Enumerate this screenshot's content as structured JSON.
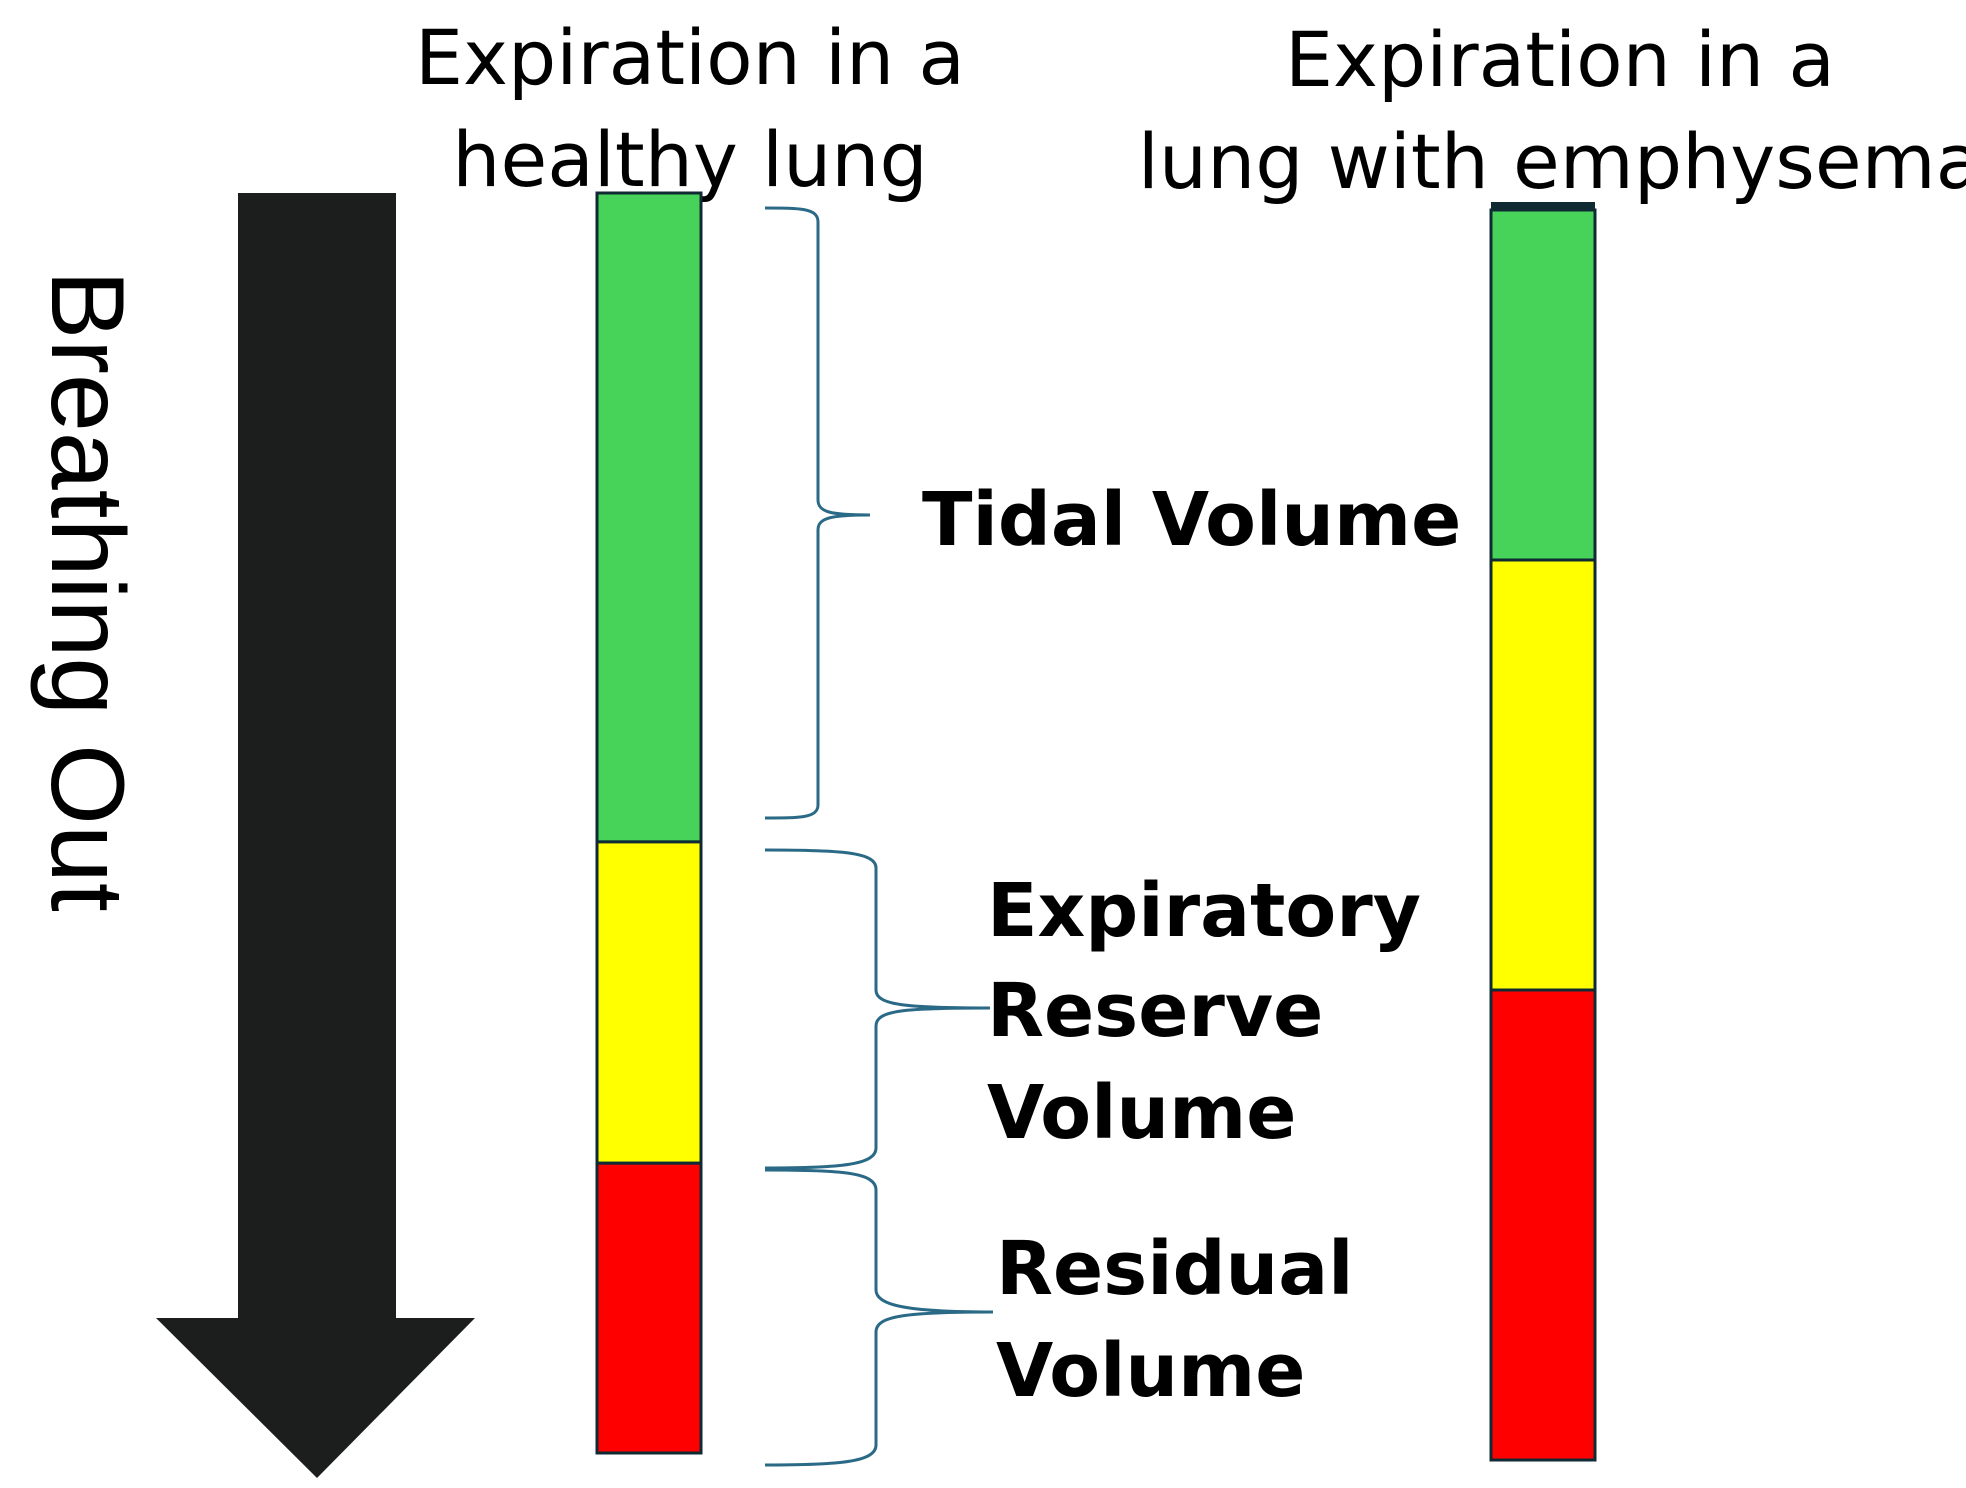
{
  "colors": {
    "tidal": "#47d35a",
    "expiratory_reserve": "#ffff00",
    "residual": "#ff0000",
    "arrow": "#1c1d1d",
    "brace": "#2a6a86"
  },
  "arrow": {
    "label": "Breathing Out",
    "icon": "down-arrow-icon"
  },
  "columns": [
    {
      "title_line1": "Expiration in a",
      "title_line2": "healthy lung",
      "segments": [
        {
          "name": "tidal",
          "fraction": 0.515
        },
        {
          "name": "expiratory-reserve",
          "fraction": 0.255
        },
        {
          "name": "residual",
          "fraction": 0.23
        }
      ]
    },
    {
      "title_line1": "Expiration in a",
      "title_line2": "lung with emphysema",
      "segments": [
        {
          "name": "tidal",
          "fraction": 0.28
        },
        {
          "name": "expiratory-reserve",
          "fraction": 0.344
        },
        {
          "name": "residual",
          "fraction": 0.376
        }
      ]
    }
  ],
  "labels": {
    "tidal": "Tidal Volume",
    "expiratory_reserve_line1": "Expiratory",
    "expiratory_reserve_line2": "Reserve",
    "expiratory_reserve_line3": "Volume",
    "residual_line1": "Residual",
    "residual_line2": "Volume"
  }
}
